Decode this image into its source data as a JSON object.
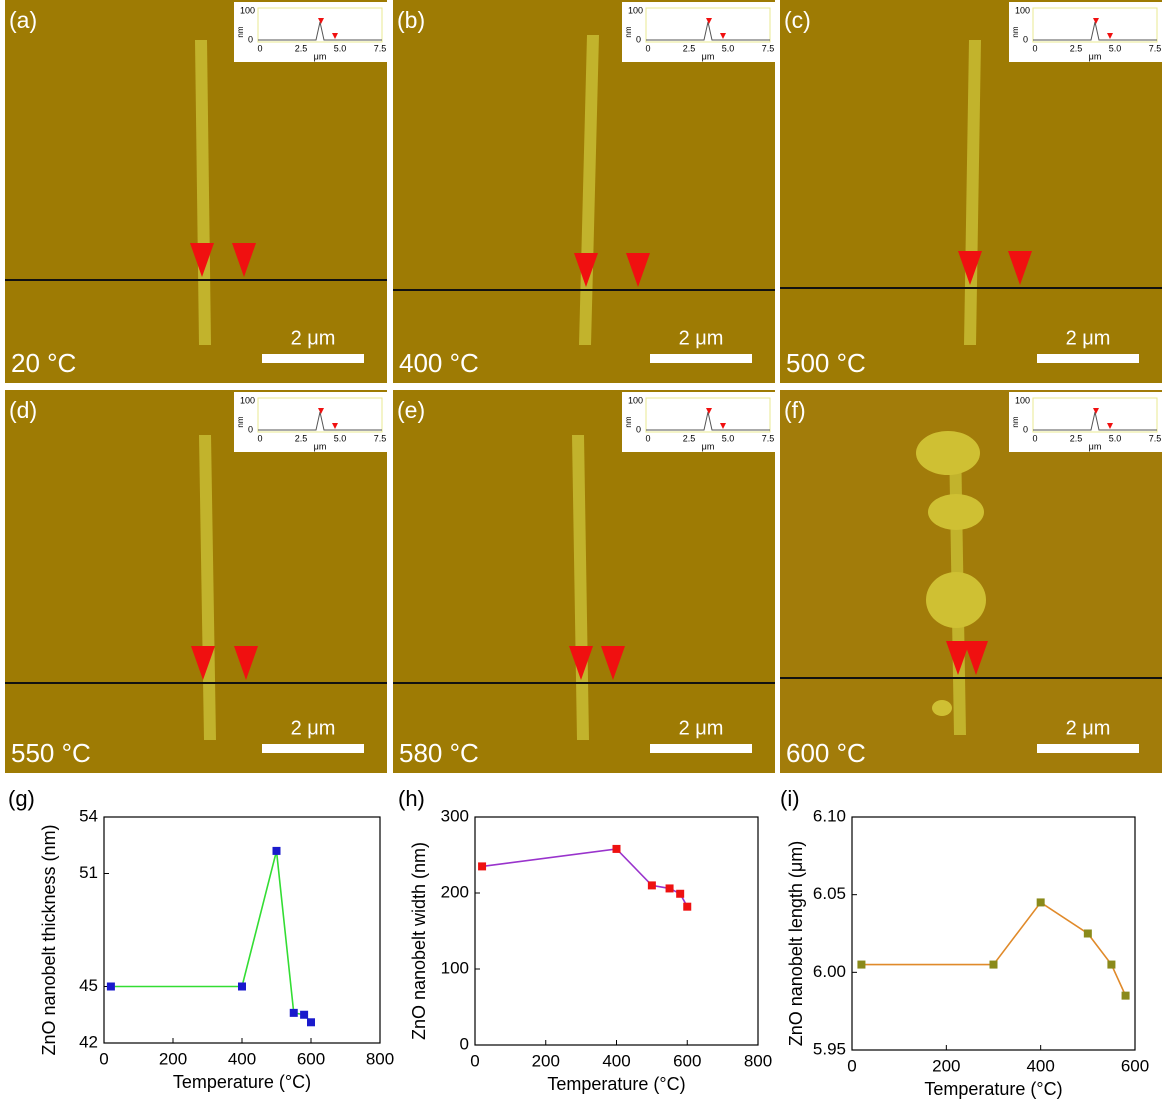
{
  "panels": [
    {
      "label": "(a)",
      "temperature": "20 °C"
    },
    {
      "label": "(b)",
      "temperature": "400 °C"
    },
    {
      "label": "(c)",
      "temperature": "500 °C"
    },
    {
      "label": "(d)",
      "temperature": "550 °C"
    },
    {
      "label": "(e)",
      "temperature": "580 °C"
    },
    {
      "label": "(f)",
      "temperature": "600 °C"
    }
  ],
  "scale_bar": "2 μm",
  "inset": {
    "y_label": "nm",
    "y_ticks": [
      "100",
      "0"
    ],
    "x_label": "μm",
    "x_ticks": [
      "0",
      "2.5",
      "5.0",
      "7.5"
    ]
  },
  "chart_data": [
    {
      "type": "line",
      "panel_label": "(g)",
      "x_label": "Temperature (°C)",
      "y_label": "ZnO nanobelt thickness (nm)",
      "x": [
        20,
        400,
        500,
        550,
        580,
        600
      ],
      "values": [
        45,
        45,
        52.2,
        43.6,
        43.5,
        43.1
      ],
      "line_color": "#33dd33",
      "marker_color": "#1a1acc",
      "xlim": [
        0,
        800
      ],
      "xticks": [
        0,
        200,
        400,
        600,
        800
      ],
      "ylim": [
        42,
        54
      ],
      "yticks": [
        42,
        45,
        51,
        54
      ]
    },
    {
      "type": "line",
      "panel_label": "(h)",
      "x_label": "Temperature (°C)",
      "y_label": "ZnO nanobelt width (nm)",
      "x": [
        20,
        400,
        500,
        550,
        580,
        600
      ],
      "values": [
        235,
        258,
        210,
        206,
        199,
        182
      ],
      "line_color": "#9933cc",
      "marker_color": "#ee1111",
      "xlim": [
        0,
        800
      ],
      "xticks": [
        0,
        200,
        400,
        600,
        800
      ],
      "ylim": [
        0,
        300
      ],
      "yticks": [
        0,
        100,
        200,
        300
      ]
    },
    {
      "type": "line",
      "panel_label": "(i)",
      "x_label": "Temperature (°C)",
      "y_label": "ZnO nanobelt length (μm)",
      "x": [
        20,
        300,
        400,
        500,
        550,
        580
      ],
      "values": [
        6.005,
        6.005,
        6.045,
        6.025,
        6.005,
        5.985
      ],
      "line_color": "#e08a2a",
      "marker_color": "#8a8a1a",
      "xlim": [
        0,
        600
      ],
      "xticks": [
        0,
        200,
        400,
        600
      ],
      "ylim": [
        5.95,
        6.1
      ],
      "yticks": [
        5.95,
        {
          "value": 6,
          "label": "6.00"
        },
        6.05,
        {
          "value": 6.1,
          "label": "6.10"
        }
      ]
    }
  ]
}
